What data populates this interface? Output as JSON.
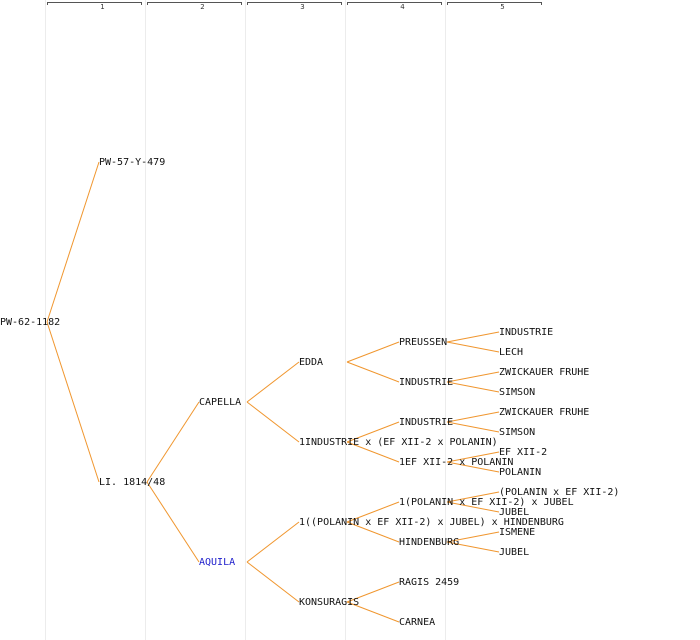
{
  "header": {
    "generations": [
      "1",
      "2",
      "3",
      "4",
      "5"
    ]
  },
  "colors": {
    "line": "#f0962e",
    "text": "#111111",
    "link": "#2020cc",
    "band": "#ececec"
  },
  "tree": {
    "root": "PW-62-1182",
    "gen1": {
      "sire": "PW-57-Y-479",
      "dam": "LI. 1814/48"
    },
    "gen2": {
      "sire": "CAPELLA",
      "dam": "AQUILA"
    },
    "gen3": {
      "capella_sire": "EDDA",
      "capella_dam": "1INDUSTRIE x (EF XII-2 x POLANIN)",
      "aquila_sire": "1((POLANIN x EF XII-2) x JUBEL) x HINDENBURG",
      "aquila_dam": "KONSURAGIS"
    },
    "gen4": {
      "edda_sire": "PREUSSEN",
      "edda_dam": "INDUSTRIE",
      "ind_cross_sire": "INDUSTRIE",
      "ind_cross_dam": "1EF XII-2 x POLANIN",
      "pol_cross_sire": "1(POLANIN x EF XII-2) x JUBEL",
      "pol_cross_dam": "HINDENBURG",
      "kons_sire": "RAGIS 2459",
      "kons_dam": "CARNEA"
    },
    "gen5": {
      "preussen_sire": "INDUSTRIE",
      "preussen_dam": "LECH",
      "industrie_a_sire": "ZWICKAUER FRUHE",
      "industrie_a_dam": "SIMSON",
      "industrie_b_sire": "ZWICKAUER FRUHE",
      "industrie_b_dam": "SIMSON",
      "ef_sire": "EF XII-2",
      "ef_dam": "POLANIN",
      "pol_sire": "(POLANIN x EF XII-2)",
      "pol_dam": "JUBEL",
      "hind_sire": "ISMENE",
      "hind_dam": "JUBEL"
    }
  }
}
